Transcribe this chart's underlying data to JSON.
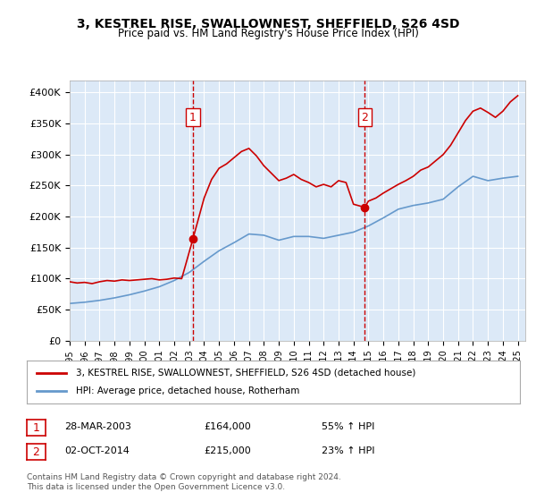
{
  "title": "3, KESTREL RISE, SWALLOWNEST, SHEFFIELD, S26 4SD",
  "subtitle": "Price paid vs. HM Land Registry's House Price Index (HPI)",
  "ylabel_ticks": [
    "£0",
    "£50K",
    "£100K",
    "£150K",
    "£200K",
    "£250K",
    "£300K",
    "£350K",
    "£400K"
  ],
  "ytick_values": [
    0,
    50000,
    100000,
    150000,
    200000,
    250000,
    300000,
    350000,
    400000
  ],
  "ylim": [
    0,
    420000
  ],
  "xlim_start": 1995.0,
  "xlim_end": 2025.5,
  "background_color": "#dce9f7",
  "plot_bg_color": "#dce9f7",
  "outer_bg_color": "#ffffff",
  "red_line_color": "#cc0000",
  "blue_line_color": "#6699cc",
  "vline_color": "#cc0000",
  "marker1_year": 2003.25,
  "marker2_year": 2014.75,
  "legend_label_red": "3, KESTREL RISE, SWALLOWNEST, SHEFFIELD, S26 4SD (detached house)",
  "legend_label_blue": "HPI: Average price, detached house, Rotherham",
  "sale1_label": "1",
  "sale1_date": "28-MAR-2003",
  "sale1_price": "£164,000",
  "sale1_hpi": "55% ↑ HPI",
  "sale2_label": "2",
  "sale2_date": "02-OCT-2014",
  "sale2_price": "£215,000",
  "sale2_hpi": "23% ↑ HPI",
  "footer": "Contains HM Land Registry data © Crown copyright and database right 2024.\nThis data is licensed under the Open Government Licence v3.0.",
  "hpi_years": [
    1995,
    1996,
    1997,
    1998,
    1999,
    2000,
    2001,
    2002,
    2003,
    2004,
    2005,
    2006,
    2007,
    2008,
    2009,
    2010,
    2011,
    2012,
    2013,
    2014,
    2015,
    2016,
    2017,
    2018,
    2019,
    2020,
    2021,
    2022,
    2023,
    2024,
    2025
  ],
  "hpi_values": [
    60000,
    62000,
    65000,
    69000,
    74000,
    80000,
    87000,
    97000,
    110000,
    128000,
    145000,
    158000,
    172000,
    170000,
    162000,
    168000,
    168000,
    165000,
    170000,
    175000,
    185000,
    198000,
    212000,
    218000,
    222000,
    228000,
    248000,
    265000,
    258000,
    262000,
    265000
  ],
  "red_years": [
    1995,
    1995.5,
    1996,
    1996.5,
    1997,
    1997.5,
    1998,
    1998.5,
    1999,
    1999.5,
    2000,
    2000.5,
    2001,
    2001.5,
    2002,
    2002.5,
    2003.25,
    2004,
    2004.5,
    2005,
    2005.5,
    2006,
    2006.5,
    2007,
    2007.5,
    2008,
    2008.5,
    2009,
    2009.5,
    2010,
    2010.5,
    2011,
    2011.5,
    2012,
    2012.5,
    2013,
    2013.5,
    2014.0,
    2014.75,
    2015,
    2015.5,
    2016,
    2016.5,
    2017,
    2017.5,
    2018,
    2018.5,
    2019,
    2019.5,
    2020,
    2020.5,
    2021,
    2021.5,
    2022,
    2022.5,
    2023,
    2023.5,
    2024,
    2024.5,
    2025
  ],
  "red_values": [
    95000,
    93000,
    94000,
    92000,
    95000,
    97000,
    96000,
    98000,
    97000,
    98000,
    99000,
    100000,
    98000,
    99000,
    101000,
    100000,
    164000,
    230000,
    260000,
    278000,
    285000,
    295000,
    305000,
    310000,
    298000,
    282000,
    270000,
    258000,
    262000,
    268000,
    260000,
    255000,
    248000,
    252000,
    248000,
    258000,
    255000,
    220000,
    215000,
    225000,
    230000,
    238000,
    245000,
    252000,
    258000,
    265000,
    275000,
    280000,
    290000,
    300000,
    315000,
    335000,
    355000,
    370000,
    375000,
    368000,
    360000,
    370000,
    385000,
    395000
  ]
}
